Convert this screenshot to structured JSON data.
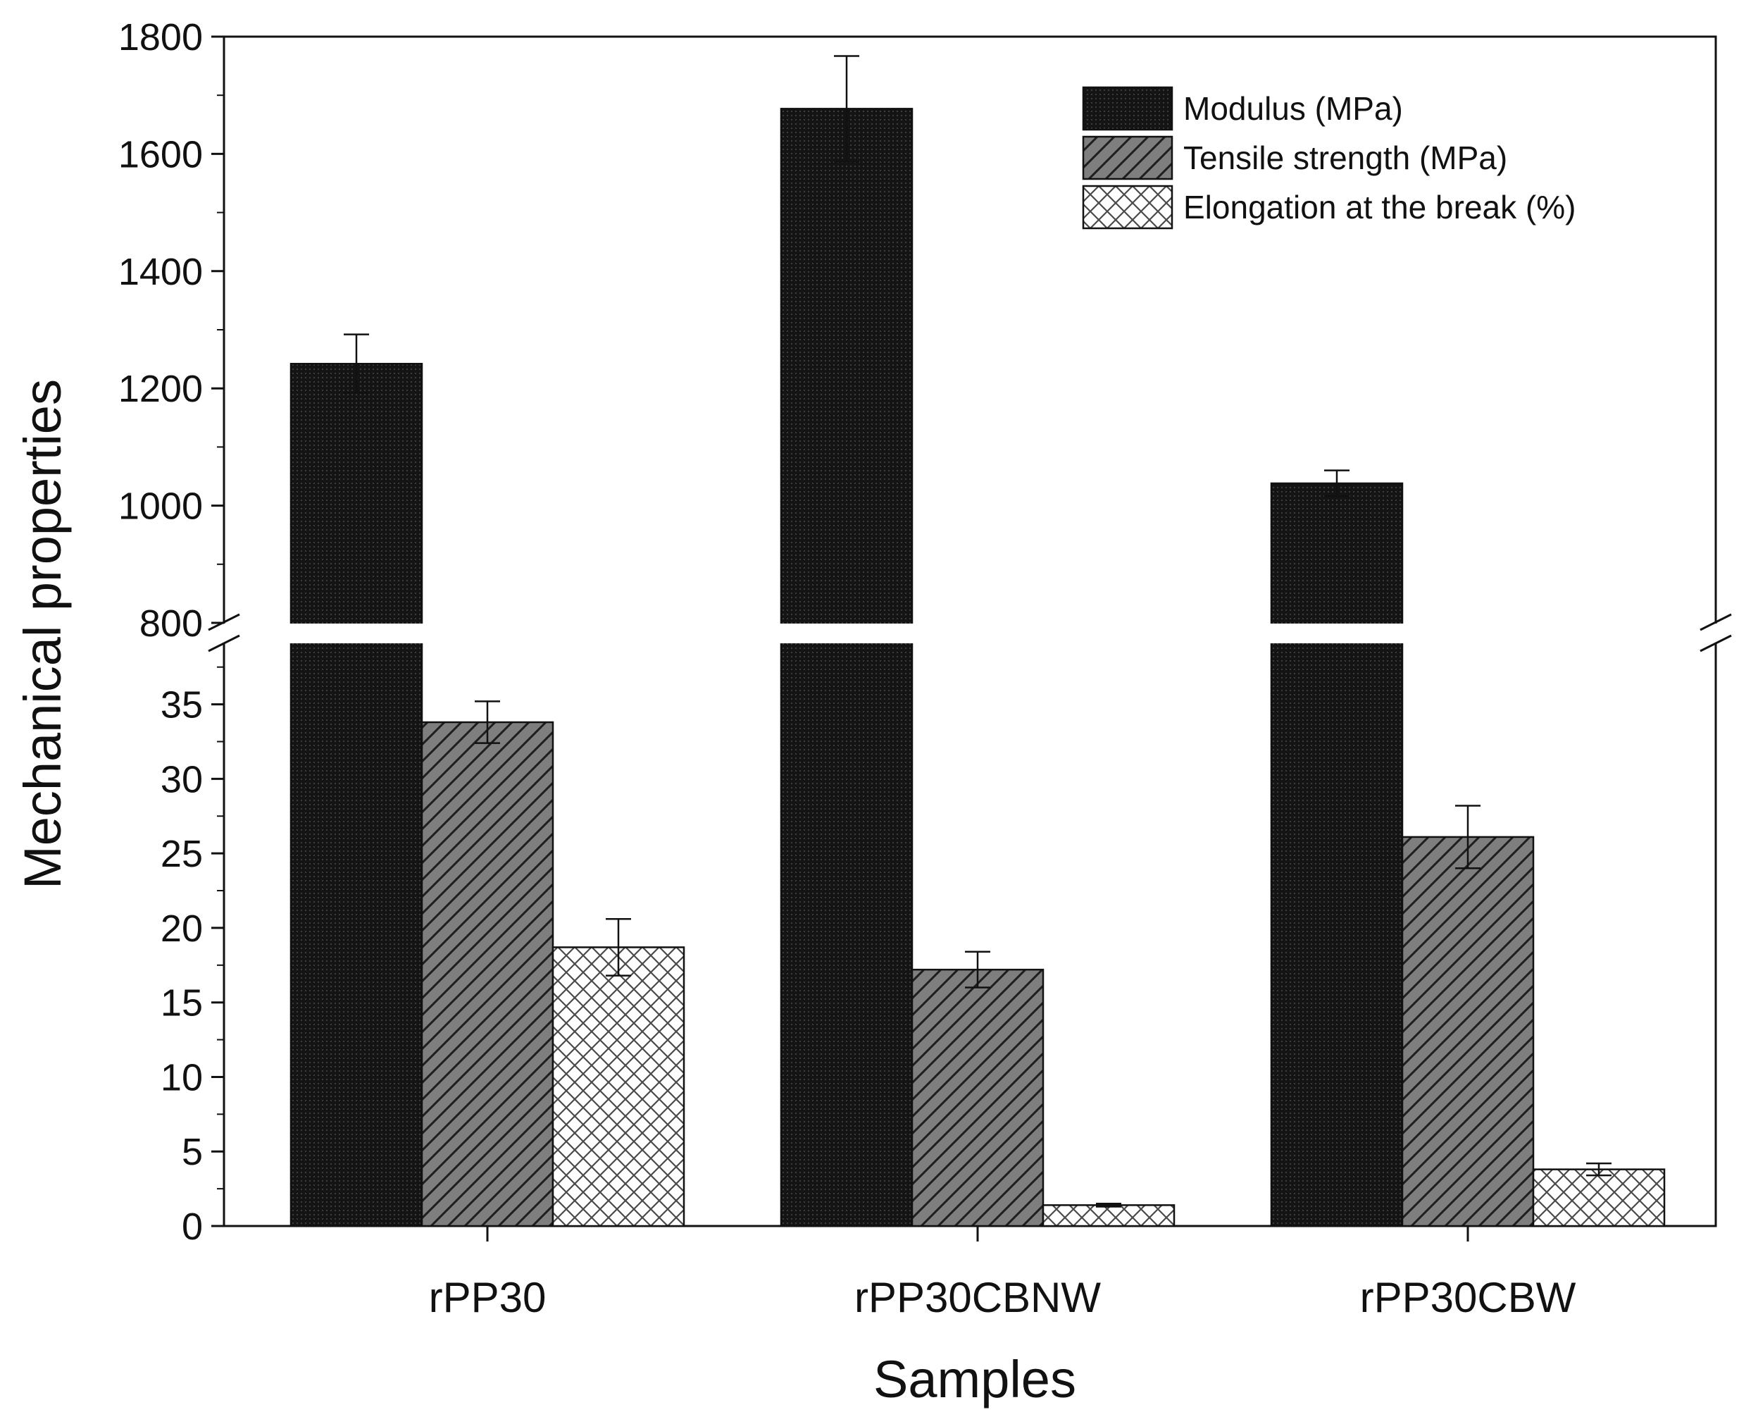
{
  "chart_data": {
    "type": "bar",
    "title": "",
    "xlabel": "Samples",
    "ylabel": "Mechanical properties",
    "categories": [
      "rPP30",
      "rPP30CBNW",
      "rPP30CBW"
    ],
    "series": [
      {
        "name": "Modulus (MPa)",
        "values": [
          1242,
          1677,
          1038
        ],
        "errors": [
          50,
          90,
          22
        ],
        "fill": "#1b1b1b",
        "pattern": "dense-dots"
      },
      {
        "name": "Tensile strength (MPa)",
        "values": [
          33.8,
          17.2,
          26.1
        ],
        "errors": [
          1.4,
          1.2,
          2.1
        ],
        "fill": "#7a7a7a",
        "pattern": "diagonal-lines"
      },
      {
        "name": "Elongation at the break (%)",
        "values": [
          18.7,
          1.4,
          3.8
        ],
        "errors": [
          1.9,
          0.1,
          0.4
        ],
        "fill": "#ffffff",
        "pattern": "cross-hatch"
      }
    ],
    "axis_break": {
      "lower_range": [
        0,
        39
      ],
      "upper_range": [
        800,
        1800
      ],
      "lower_ticks": [
        0,
        5,
        10,
        15,
        20,
        25,
        30,
        35
      ],
      "upper_ticks": [
        800,
        1000,
        1200,
        1400,
        1600,
        1800
      ]
    },
    "legend_position": "top-right",
    "grid": false
  },
  "colors": {
    "axis": "#111111",
    "background": "#ffffff"
  }
}
